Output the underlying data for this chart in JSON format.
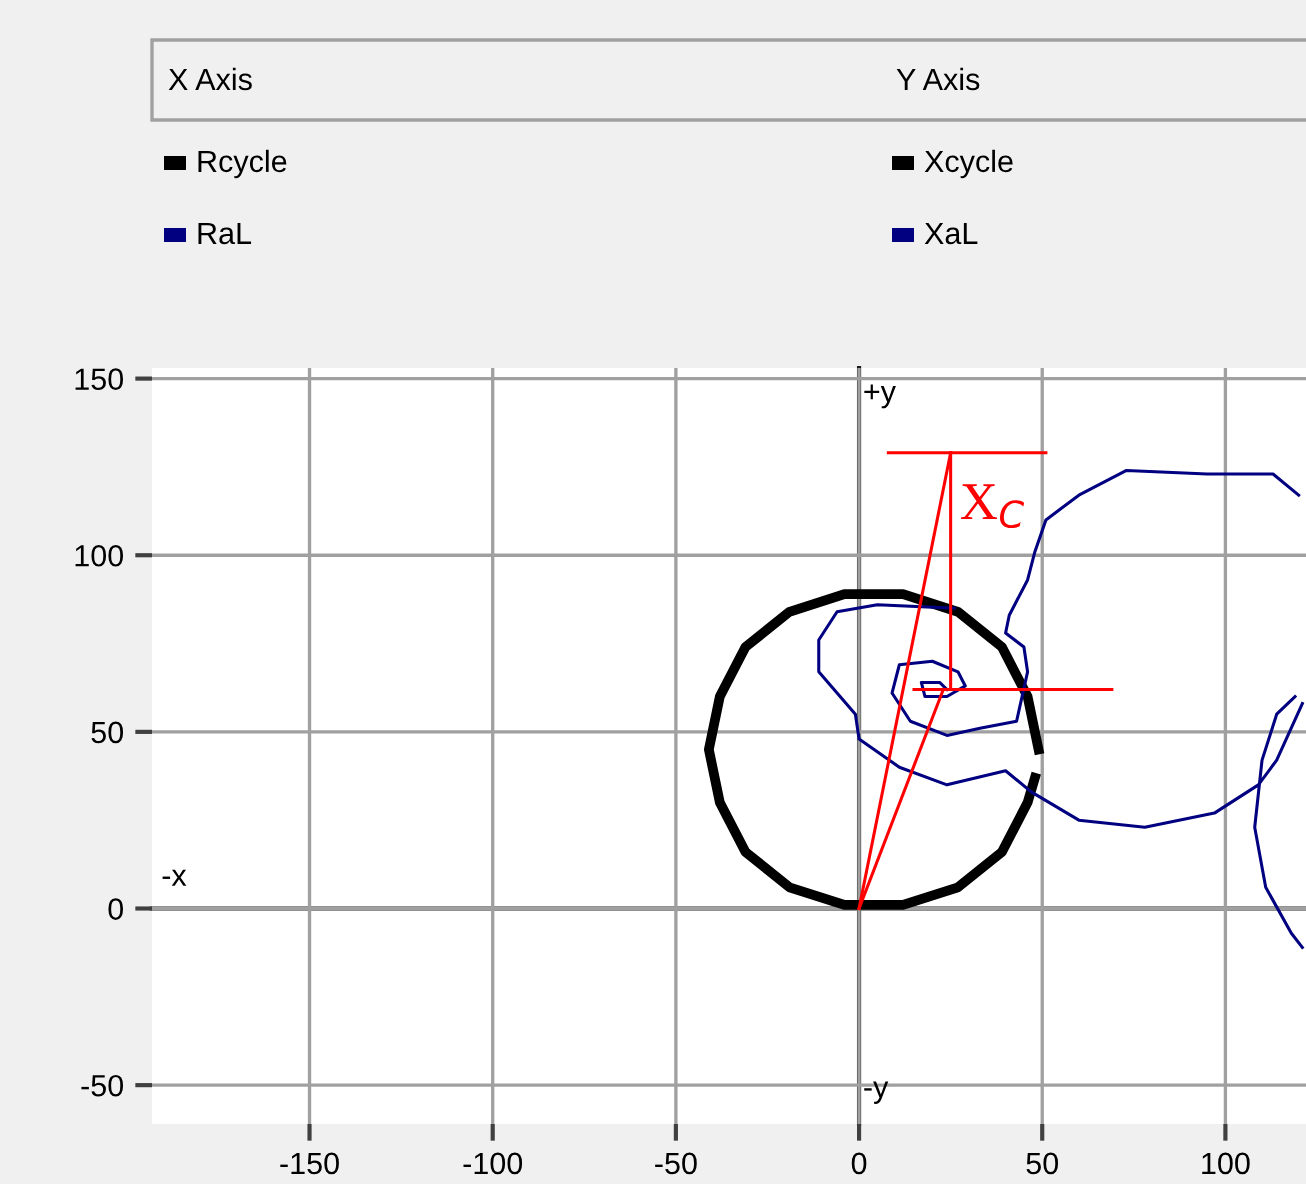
{
  "chart_data": {
    "type": "line",
    "xlim": [
      -193,
      122
    ],
    "ylim": [
      -61,
      153
    ],
    "xticks": [
      -150,
      -100,
      -50,
      0,
      50,
      100
    ],
    "yticks": [
      -50,
      0,
      50,
      100,
      150
    ],
    "grid": true,
    "legend": "top",
    "marker": "none",
    "line_style": "solid",
    "annotations": [
      "X Axis",
      "Y Axis",
      "Xcycle",
      "XaL",
      "+y",
      "-y",
      "-x",
      "X$_{C}$"
    ],
    "series": [
      {
        "name": "Rcycle",
        "color": "#000000",
        "x": [
          49,
          46,
          39,
          27,
          12,
          -4,
          -19,
          -31,
          -38,
          -41,
          -38,
          -31,
          -19,
          -4,
          12,
          27,
          39,
          46,
          48
        ],
        "values": [
          45,
          60,
          74,
          84,
          89,
          89,
          84,
          74,
          60,
          45,
          30,
          16,
          6,
          1,
          1,
          6,
          16,
          30,
          37
        ]
      },
      {
        "name": "RaL",
        "color": "#000080",
        "x": [
          120,
          113,
          95,
          73,
          60,
          51,
          48,
          46,
          41,
          40,
          45,
          46,
          43,
          33,
          24,
          14,
          9,
          11,
          20,
          27,
          29,
          24,
          18,
          17,
          22,
          24,
          null,
          26,
          5,
          -6,
          -11,
          -11,
          -1,
          0,
          11,
          24,
          40,
          47,
          60,
          78,
          97,
          109,
          114,
          121,
          null,
          119,
          114,
          110,
          108,
          111,
          118,
          121
        ],
        "values": [
          117,
          123,
          123,
          124,
          117,
          110,
          101,
          93,
          83,
          78,
          74,
          67,
          53,
          51,
          49,
          53,
          61,
          69,
          70,
          67,
          63,
          60,
          60,
          64,
          64,
          62,
          null,
          85,
          86,
          84,
          76,
          67,
          55,
          48,
          40,
          35,
          39,
          33,
          25,
          23,
          27,
          35,
          42,
          58,
          null,
          60,
          55,
          42,
          23,
          6,
          -7,
          -11
        ]
      },
      {
        "color": "#ff0000",
        "x": [
          0,
          25
        ],
        "values": [
          0,
          129
        ]
      },
      {
        "color": "#ff0000",
        "x": [
          0,
          23
        ],
        "values": [
          0,
          62
        ]
      },
      {
        "color": "#ff0000",
        "x": [
          25,
          25
        ],
        "values": [
          129,
          62
        ]
      },
      {
        "color": "#ff0000",
        "x": [
          8,
          51
        ],
        "values": [
          129,
          129
        ]
      },
      {
        "color": "#ff0000",
        "x": [
          15,
          69
        ],
        "values": [
          62,
          62
        ]
      }
    ]
  }
}
